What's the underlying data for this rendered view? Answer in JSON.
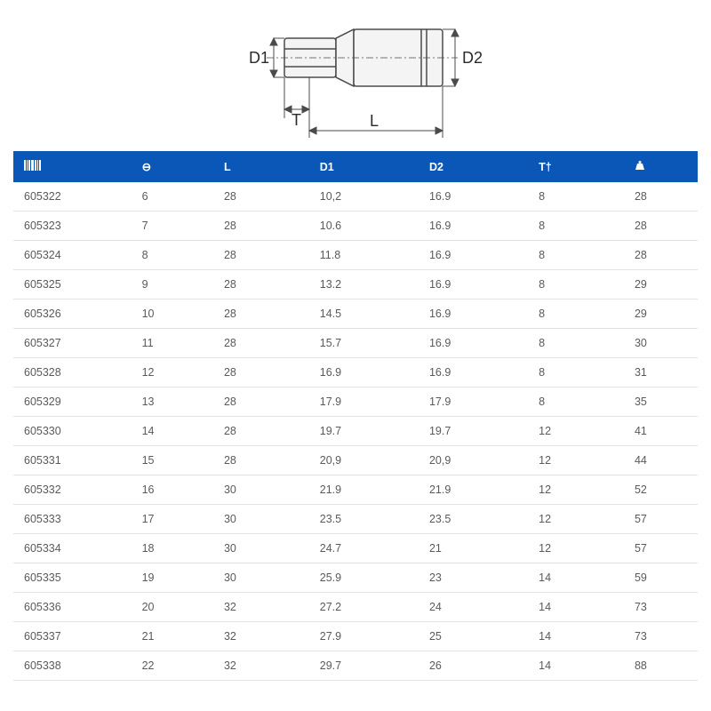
{
  "diagram": {
    "labels": {
      "d1": "D1",
      "d2": "D2",
      "t": "T",
      "l": "L"
    },
    "stroke": "#4b4b4b",
    "fill": "#f4f4f4",
    "arrow_fill": "#4b4b4b",
    "label_fontsize": 18,
    "label_color": "#2a2a2a"
  },
  "table": {
    "header_bg": "#0a57b8",
    "header_color": "#ffffff",
    "row_border": "#e3e3e3",
    "cell_color": "#5a5a5a",
    "fontsize": 12.5,
    "columns": [
      {
        "key": "code",
        "label_icon": "barcode-icon",
        "width_pct": 18
      },
      {
        "key": "size",
        "label": "⊖",
        "width_pct": 12
      },
      {
        "key": "L",
        "label": "L",
        "width_pct": 14
      },
      {
        "key": "D1",
        "label": "D1",
        "width_pct": 16
      },
      {
        "key": "D2",
        "label": "D2",
        "width_pct": 16
      },
      {
        "key": "T",
        "label": "T†",
        "width_pct": 14
      },
      {
        "key": "weight",
        "label_icon": "weight-icon",
        "width_pct": 10
      }
    ],
    "rows": [
      {
        "code": "605322",
        "size": "6",
        "L": "28",
        "D1": "10,2",
        "D2": "16.9",
        "T": "8",
        "weight": "28"
      },
      {
        "code": "605323",
        "size": "7",
        "L": "28",
        "D1": "10.6",
        "D2": "16.9",
        "T": "8",
        "weight": "28"
      },
      {
        "code": "605324",
        "size": "8",
        "L": "28",
        "D1": "11.8",
        "D2": "16.9",
        "T": "8",
        "weight": "28"
      },
      {
        "code": "605325",
        "size": "9",
        "L": "28",
        "D1": "13.2",
        "D2": "16.9",
        "T": "8",
        "weight": "29"
      },
      {
        "code": "605326",
        "size": "10",
        "L": "28",
        "D1": "14.5",
        "D2": "16.9",
        "T": "8",
        "weight": "29"
      },
      {
        "code": "605327",
        "size": "11",
        "L": "28",
        "D1": "15.7",
        "D2": "16.9",
        "T": "8",
        "weight": "30"
      },
      {
        "code": "605328",
        "size": "12",
        "L": "28",
        "D1": "16.9",
        "D2": "16.9",
        "T": "8",
        "weight": "31"
      },
      {
        "code": "605329",
        "size": "13",
        "L": "28",
        "D1": "17.9",
        "D2": "17.9",
        "T": "8",
        "weight": "35"
      },
      {
        "code": "605330",
        "size": "14",
        "L": "28",
        "D1": "19.7",
        "D2": "19.7",
        "T": "12",
        "weight": "41"
      },
      {
        "code": "605331",
        "size": "15",
        "L": "28",
        "D1": "20,9",
        "D2": "20,9",
        "T": "12",
        "weight": "44"
      },
      {
        "code": "605332",
        "size": "16",
        "L": "30",
        "D1": "21.9",
        "D2": "21.9",
        "T": "12",
        "weight": "52"
      },
      {
        "code": "605333",
        "size": "17",
        "L": "30",
        "D1": "23.5",
        "D2": "23.5",
        "T": "12",
        "weight": "57"
      },
      {
        "code": "605334",
        "size": "18",
        "L": "30",
        "D1": "24.7",
        "D2": "21",
        "T": "12",
        "weight": "57"
      },
      {
        "code": "605335",
        "size": "19",
        "L": "30",
        "D1": "25.9",
        "D2": "23",
        "T": "14",
        "weight": "59"
      },
      {
        "code": "605336",
        "size": "20",
        "L": "32",
        "D1": "27.2",
        "D2": "24",
        "T": "14",
        "weight": "73"
      },
      {
        "code": "605337",
        "size": "21",
        "L": "32",
        "D1": "27.9",
        "D2": "25",
        "T": "14",
        "weight": "73"
      },
      {
        "code": "605338",
        "size": "22",
        "L": "32",
        "D1": "29.7",
        "D2": "26",
        "T": "14",
        "weight": "88"
      }
    ]
  }
}
